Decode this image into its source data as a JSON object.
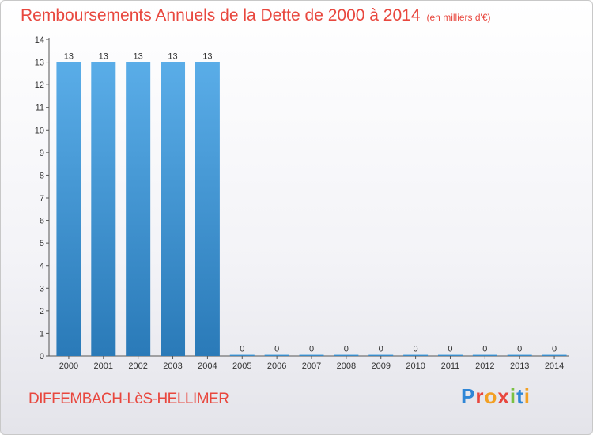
{
  "title": {
    "main": "Remboursements Annuels de la Dette de 2000 à 2014",
    "sub": "(en milliers d'€)"
  },
  "place": "DIFFEMBACH-LèS-HELLIMER",
  "logo": "Proxiti",
  "colors": {
    "accent": "#e8473e",
    "bar_top": "#5aade8",
    "bar_bottom": "#2a7ab8"
  },
  "chart_data": {
    "type": "bar",
    "categories": [
      "2000",
      "2001",
      "2002",
      "2003",
      "2004",
      "2005",
      "2006",
      "2007",
      "2008",
      "2009",
      "2010",
      "2011",
      "2012",
      "2013",
      "2014"
    ],
    "values": [
      13,
      13,
      13,
      13,
      13,
      0,
      0,
      0,
      0,
      0,
      0,
      0,
      0,
      0,
      0
    ],
    "ylim": [
      0,
      14
    ],
    "yticks": [
      0,
      1,
      2,
      3,
      4,
      5,
      6,
      7,
      8,
      9,
      10,
      11,
      12,
      13,
      14
    ],
    "grid": false
  }
}
